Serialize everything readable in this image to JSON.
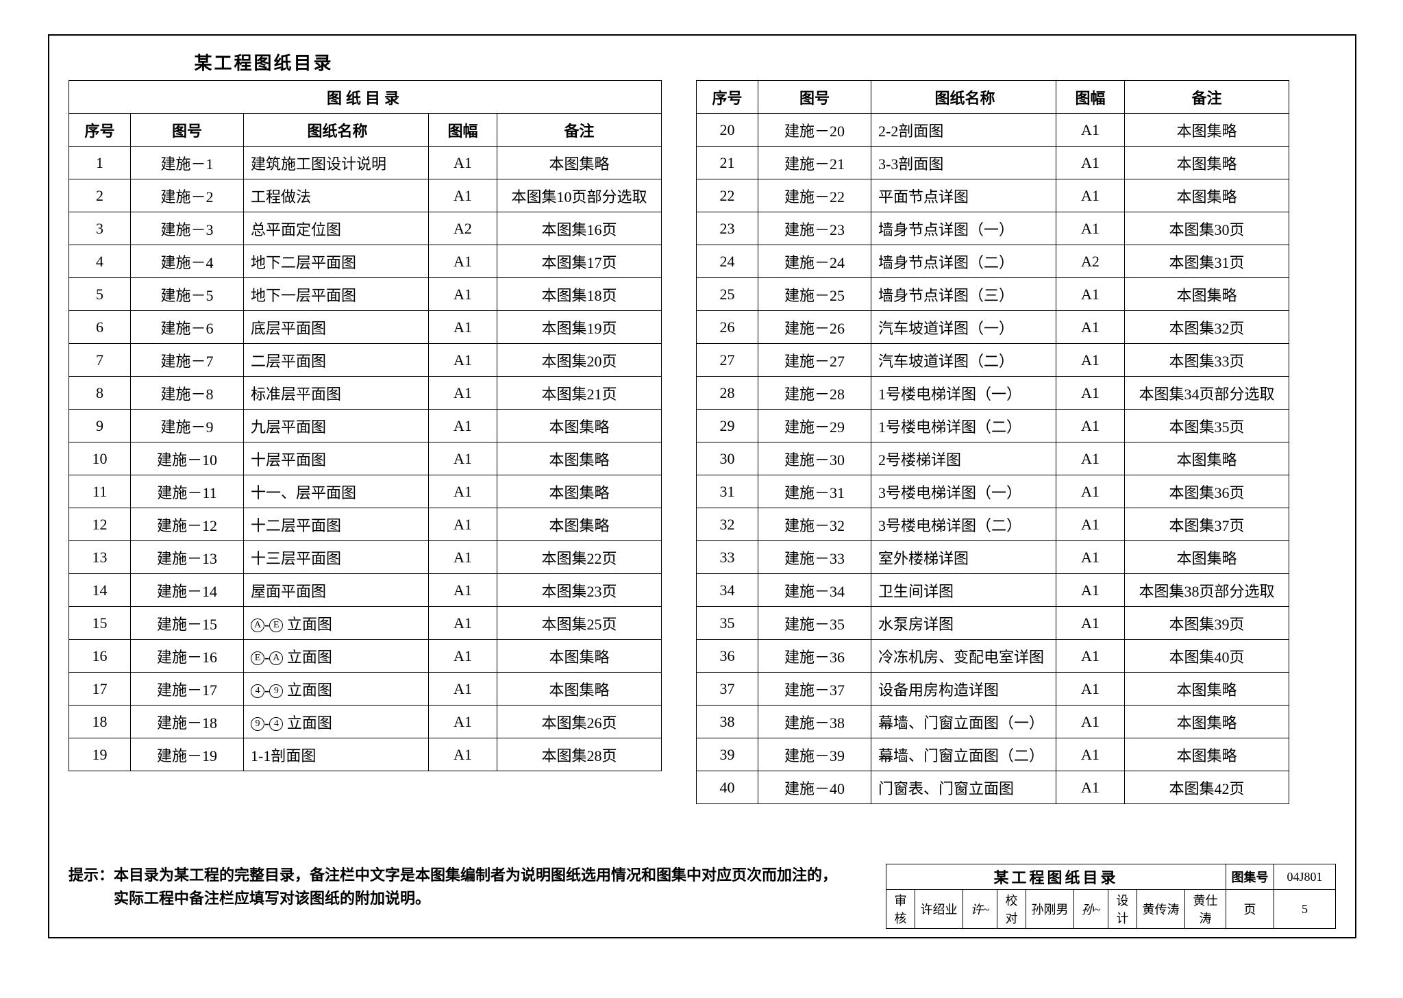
{
  "page_title": "某工程图纸目录",
  "table_caption": "图纸目录",
  "headers": {
    "seq": "序号",
    "num": "图号",
    "name": "图纸名称",
    "size": "图幅",
    "note": "备注"
  },
  "left_rows": [
    {
      "seq": "1",
      "num": "建施－1",
      "name": "建筑施工图设计说明",
      "size": "A1",
      "note": "本图集略"
    },
    {
      "seq": "2",
      "num": "建施－2",
      "name": "工程做法",
      "size": "A1",
      "note": "本图集10页部分选取"
    },
    {
      "seq": "3",
      "num": "建施－3",
      "name": "总平面定位图",
      "size": "A2",
      "note": "本图集16页"
    },
    {
      "seq": "4",
      "num": "建施－4",
      "name": "地下二层平面图",
      "size": "A1",
      "note": "本图集17页"
    },
    {
      "seq": "5",
      "num": "建施－5",
      "name": "地下一层平面图",
      "size": "A1",
      "note": "本图集18页"
    },
    {
      "seq": "6",
      "num": "建施－6",
      "name": "底层平面图",
      "size": "A1",
      "note": "本图集19页"
    },
    {
      "seq": "7",
      "num": "建施－7",
      "name": "二层平面图",
      "size": "A1",
      "note": "本图集20页"
    },
    {
      "seq": "8",
      "num": "建施－8",
      "name": "标准层平面图",
      "size": "A1",
      "note": "本图集21页"
    },
    {
      "seq": "9",
      "num": "建施－9",
      "name": "九层平面图",
      "size": "A1",
      "note": "本图集略"
    },
    {
      "seq": "10",
      "num": "建施－10",
      "name": "十层平面图",
      "size": "A1",
      "note": "本图集略"
    },
    {
      "seq": "11",
      "num": "建施－11",
      "name": "十一、层平面图",
      "size": "A1",
      "note": "本图集略"
    },
    {
      "seq": "12",
      "num": "建施－12",
      "name": "十二层平面图",
      "size": "A1",
      "note": "本图集略"
    },
    {
      "seq": "13",
      "num": "建施－13",
      "name": "十三层平面图",
      "size": "A1",
      "note": "本图集22页"
    },
    {
      "seq": "14",
      "num": "建施－14",
      "name": "屋面平面图",
      "size": "A1",
      "note": "本图集23页"
    },
    {
      "seq": "15",
      "num": "建施－15",
      "name": "_ELEV_AE_",
      "size": "A1",
      "note": "本图集25页"
    },
    {
      "seq": "16",
      "num": "建施－16",
      "name": "_ELEV_EA_",
      "size": "A1",
      "note": "本图集略"
    },
    {
      "seq": "17",
      "num": "建施－17",
      "name": "_ELEV_49_",
      "size": "A1",
      "note": "本图集略"
    },
    {
      "seq": "18",
      "num": "建施－18",
      "name": "_ELEV_94_",
      "size": "A1",
      "note": "本图集26页"
    },
    {
      "seq": "19",
      "num": "建施－19",
      "name": "1-1剖面图",
      "size": "A1",
      "note": "本图集28页"
    }
  ],
  "right_rows": [
    {
      "seq": "20",
      "num": "建施－20",
      "name": "2-2剖面图",
      "size": "A1",
      "note": "本图集略"
    },
    {
      "seq": "21",
      "num": "建施－21",
      "name": "3-3剖面图",
      "size": "A1",
      "note": "本图集略"
    },
    {
      "seq": "22",
      "num": "建施－22",
      "name": "平面节点详图",
      "size": "A1",
      "note": "本图集略"
    },
    {
      "seq": "23",
      "num": "建施－23",
      "name": "墙身节点详图（一）",
      "size": "A1",
      "note": "本图集30页"
    },
    {
      "seq": "24",
      "num": "建施－24",
      "name": "墙身节点详图（二）",
      "size": "A2",
      "note": "本图集31页"
    },
    {
      "seq": "25",
      "num": "建施－25",
      "name": "墙身节点详图（三）",
      "size": "A1",
      "note": "本图集略"
    },
    {
      "seq": "26",
      "num": "建施－26",
      "name": "汽车坡道详图（一）",
      "size": "A1",
      "note": "本图集32页"
    },
    {
      "seq": "27",
      "num": "建施－27",
      "name": "汽车坡道详图（二）",
      "size": "A1",
      "note": "本图集33页"
    },
    {
      "seq": "28",
      "num": "建施－28",
      "name": "1号楼电梯详图（一）",
      "size": "A1",
      "note": "本图集34页部分选取"
    },
    {
      "seq": "29",
      "num": "建施－29",
      "name": "1号楼电梯详图（二）",
      "size": "A1",
      "note": "本图集35页"
    },
    {
      "seq": "30",
      "num": "建施－30",
      "name": "2号楼梯详图",
      "size": "A1",
      "note": "本图集略"
    },
    {
      "seq": "31",
      "num": "建施－31",
      "name": "3号楼电梯详图（一）",
      "size": "A1",
      "note": "本图集36页"
    },
    {
      "seq": "32",
      "num": "建施－32",
      "name": "3号楼电梯详图（二）",
      "size": "A1",
      "note": "本图集37页"
    },
    {
      "seq": "33",
      "num": "建施－33",
      "name": "室外楼梯详图",
      "size": "A1",
      "note": "本图集略"
    },
    {
      "seq": "34",
      "num": "建施－34",
      "name": "卫生间详图",
      "size": "A1",
      "note": "本图集38页部分选取"
    },
    {
      "seq": "35",
      "num": "建施－35",
      "name": "水泵房详图",
      "size": "A1",
      "note": "本图集39页"
    },
    {
      "seq": "36",
      "num": "建施－36",
      "name": "冷冻机房、变配电室详图",
      "size": "A1",
      "note": "本图集40页"
    },
    {
      "seq": "37",
      "num": "建施－37",
      "name": "设备用房构造详图",
      "size": "A1",
      "note": "本图集略"
    },
    {
      "seq": "38",
      "num": "建施－38",
      "name": "幕墙、门窗立面图（一）",
      "size": "A1",
      "note": "本图集略"
    },
    {
      "seq": "39",
      "num": "建施－39",
      "name": "幕墙、门窗立面图（二）",
      "size": "A1",
      "note": "本图集略"
    },
    {
      "seq": "40",
      "num": "建施－40",
      "name": "门窗表、门窗立面图",
      "size": "A1",
      "note": "本图集42页"
    }
  ],
  "hint_line1": "提示：本目录为某工程的完整目录，备注栏中文字是本图集编制者为说明图纸选用情况和图集中对应页次而加注的，",
  "hint_line2": "　　　实际工程中备注栏应填写对该图纸的附加说明。",
  "title_block": {
    "title": "某工程图纸目录",
    "set_label": "图集号",
    "set_no": "04J801",
    "review_l": "审核",
    "review_n": "许绍业",
    "review_s": "许~",
    "check_l": "校对",
    "check_n": "孙刚男",
    "check_s": "孙~",
    "design_l": "设计",
    "design_n": "黄传涛",
    "design_s2": "黄仕涛",
    "page_l": "页",
    "page_n": "5"
  },
  "elev": {
    "AE": [
      "A",
      "E",
      " 立面图"
    ],
    "EA": [
      "E",
      "A",
      " 立面图"
    ],
    "49": [
      "4",
      "9",
      " 立面图"
    ],
    "94": [
      "9",
      "4",
      " 立面图"
    ]
  }
}
